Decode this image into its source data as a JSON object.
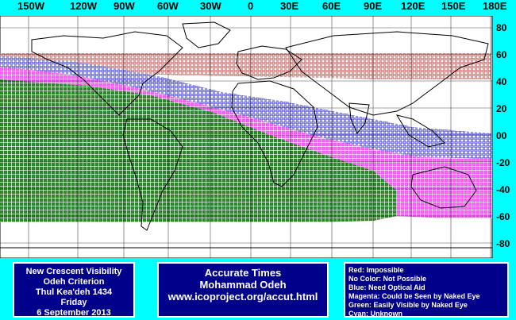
{
  "map": {
    "longitude_labels": [
      "150W",
      "120W",
      "90W",
      "60W",
      "30W",
      "0",
      "30E",
      "60E",
      "90E",
      "120E",
      "150E",
      "180E"
    ],
    "latitude_labels": [
      "80",
      "60",
      "40",
      "20",
      "00",
      "-20",
      "-40",
      "-60",
      "-80"
    ],
    "colors": {
      "background": "#00ffff",
      "ocean": "#ffffff",
      "impossible": "#c0504d",
      "optical_aid": "#3333cc",
      "naked_eye_could": "#ff66ff",
      "easily_visible": "#2e8b2e"
    }
  },
  "info_box": {
    "lines": [
      "New Crescent Visibility",
      "Odeh Criterion",
      "Thul Kea'deh 1434",
      "Friday",
      "6 September 2013"
    ]
  },
  "credit_box": {
    "lines": [
      "Accurate Times",
      "Mohammad Odeh",
      "www.icoproject.org/accut.html"
    ]
  },
  "legend_box": {
    "lines": [
      "Red: Impossible",
      "No Color: Not Possible",
      "Blue: Need Optical Aid",
      "Magenta: Could be Seen by Naked Eye",
      "Green: Easily Visible by Naked Eye",
      "Cyan: Unknown"
    ]
  }
}
